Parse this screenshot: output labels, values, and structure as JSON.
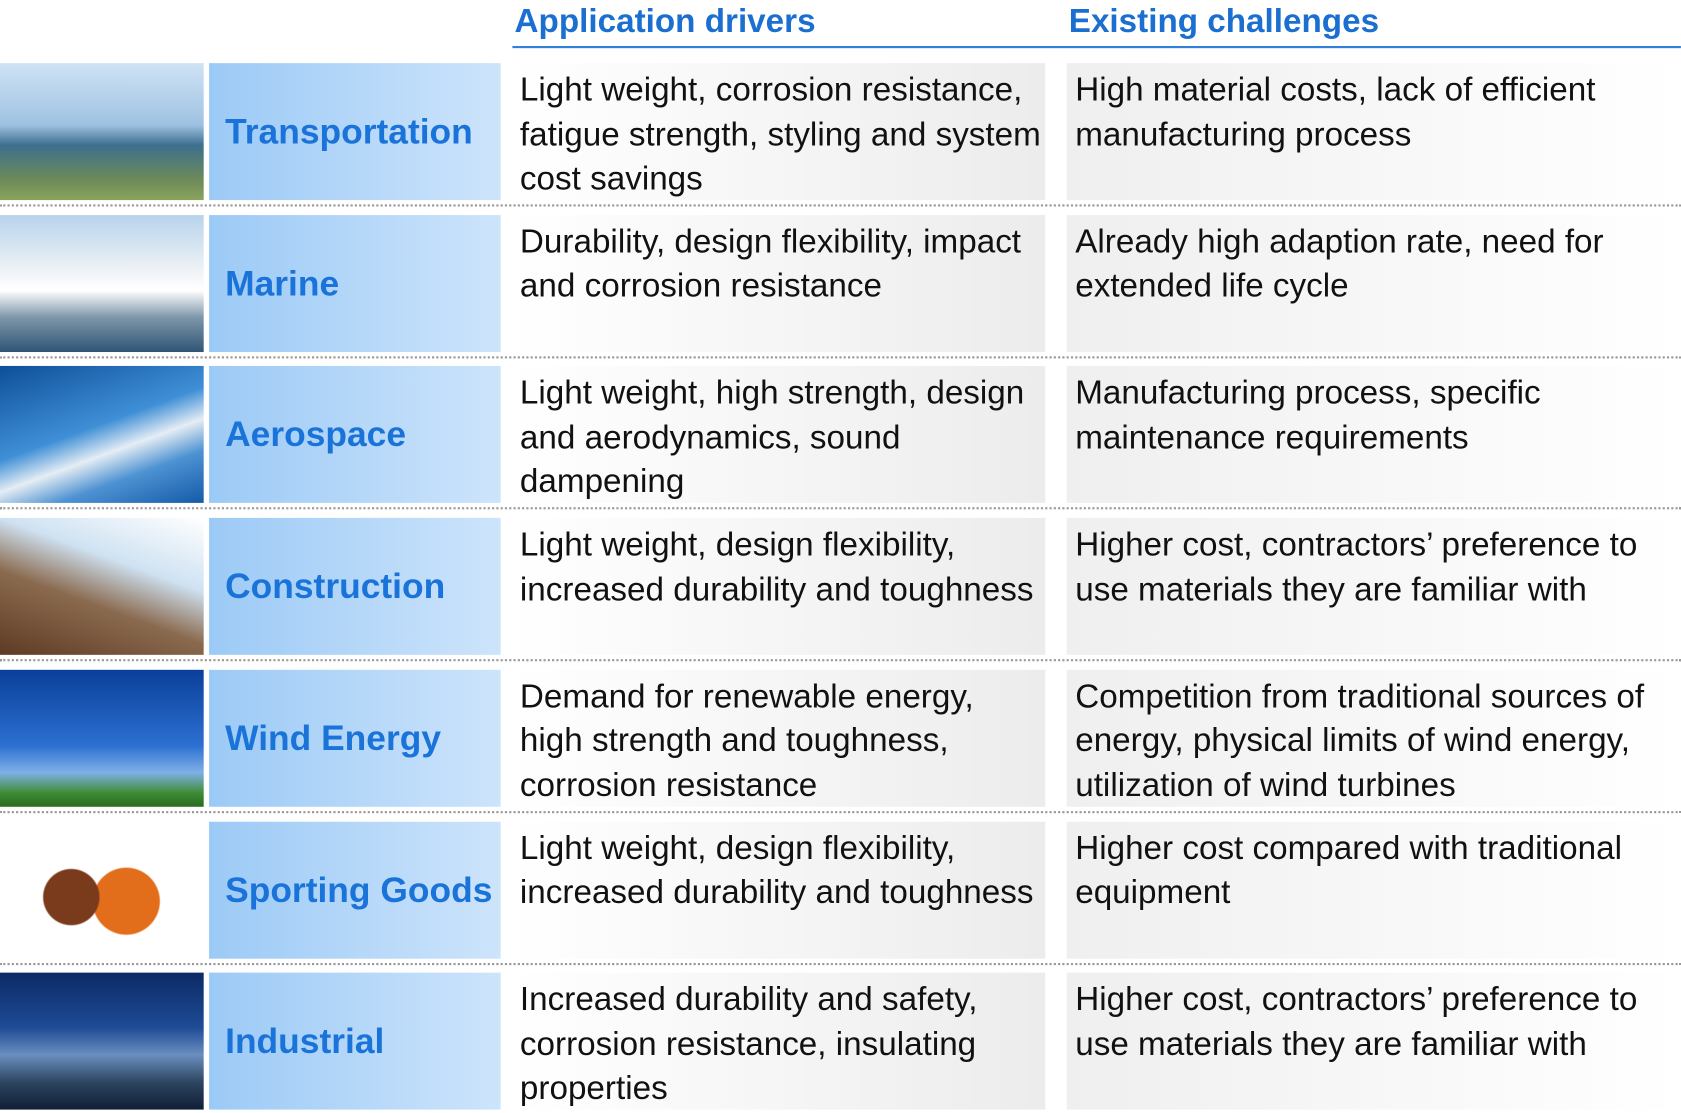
{
  "header": {
    "columns": [
      "Application drivers",
      "Existing challenges"
    ]
  },
  "rows": [
    {
      "category": "Transportation",
      "drivers": "Light weight, corrosion resistance, fatigue strength, styling and system cost savings",
      "challenges": "High material costs, lack of efficient manufacturing process"
    },
    {
      "category": "Marine",
      "drivers": "Durability, design flexibility, impact and corrosion resistance",
      "challenges": "Already high adaption rate, need for extended life cycle"
    },
    {
      "category": "Aerospace",
      "drivers": "Light weight, high strength, design and aerodynamics, sound dampening",
      "challenges": "Manufacturing process, specific maintenance requirements"
    },
    {
      "category": "Construction",
      "drivers": "Light weight, design flexibility, increased durability and toughness",
      "challenges": "Higher cost, contractors’ preference to use materials they are familiar with"
    },
    {
      "category": "Wind Energy",
      "drivers": "Demand for renewable energy, high strength and toughness, corrosion resistance",
      "challenges": "Competition from traditional sources of energy, physical limits of wind energy, utilization of wind turbines"
    },
    {
      "category": "Sporting Goods",
      "drivers": "Light weight, design flexibility, increased durability and toughness",
      "challenges": "Higher cost compared with traditional equipment"
    },
    {
      "category": "Industrial",
      "drivers": "Increased durability and safety, corrosion resistance, insulating properties",
      "challenges": "Higher cost, contractors’ preference to use materials they are familiar with"
    }
  ]
}
